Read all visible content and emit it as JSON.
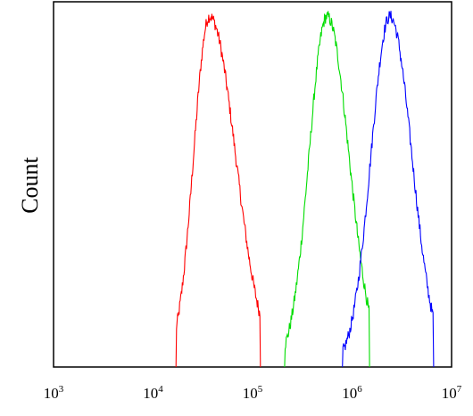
{
  "chart_data": {
    "type": "line",
    "chart_kind": "flow-cytometry histogram",
    "ylabel": "Count",
    "xlabel": "",
    "x_scale": "log",
    "xlim": [
      1000,
      10000000
    ],
    "ylim": [
      0,
      1.0
    ],
    "x_ticks": [
      {
        "base": "10",
        "exp": "3",
        "value": 1000
      },
      {
        "base": "10",
        "exp": "4",
        "value": 10000
      },
      {
        "base": "10",
        "exp": "5",
        "value": 100000
      },
      {
        "base": "10",
        "exp": "6",
        "value": 1000000
      },
      {
        "base": "10",
        "exp": "7",
        "value": 10000000
      }
    ],
    "series": [
      {
        "color": "#ff0000",
        "peak_x": 37000,
        "peak_y": 0.96,
        "x_range": [
          17000,
          120000
        ],
        "spread_left": 0.16,
        "spread_right": 0.26
      },
      {
        "color": "#00dd00",
        "peak_x": 560000,
        "peak_y": 0.96,
        "x_range": [
          210000,
          1500000
        ],
        "spread_left": 0.18,
        "spread_right": 0.22
      },
      {
        "color": "#0000ff",
        "peak_x": 2400000,
        "peak_y": 0.96,
        "x_range": [
          800000,
          6600000
        ],
        "spread_left": 0.19,
        "spread_right": 0.22
      }
    ],
    "grid": false,
    "legend": "none"
  }
}
